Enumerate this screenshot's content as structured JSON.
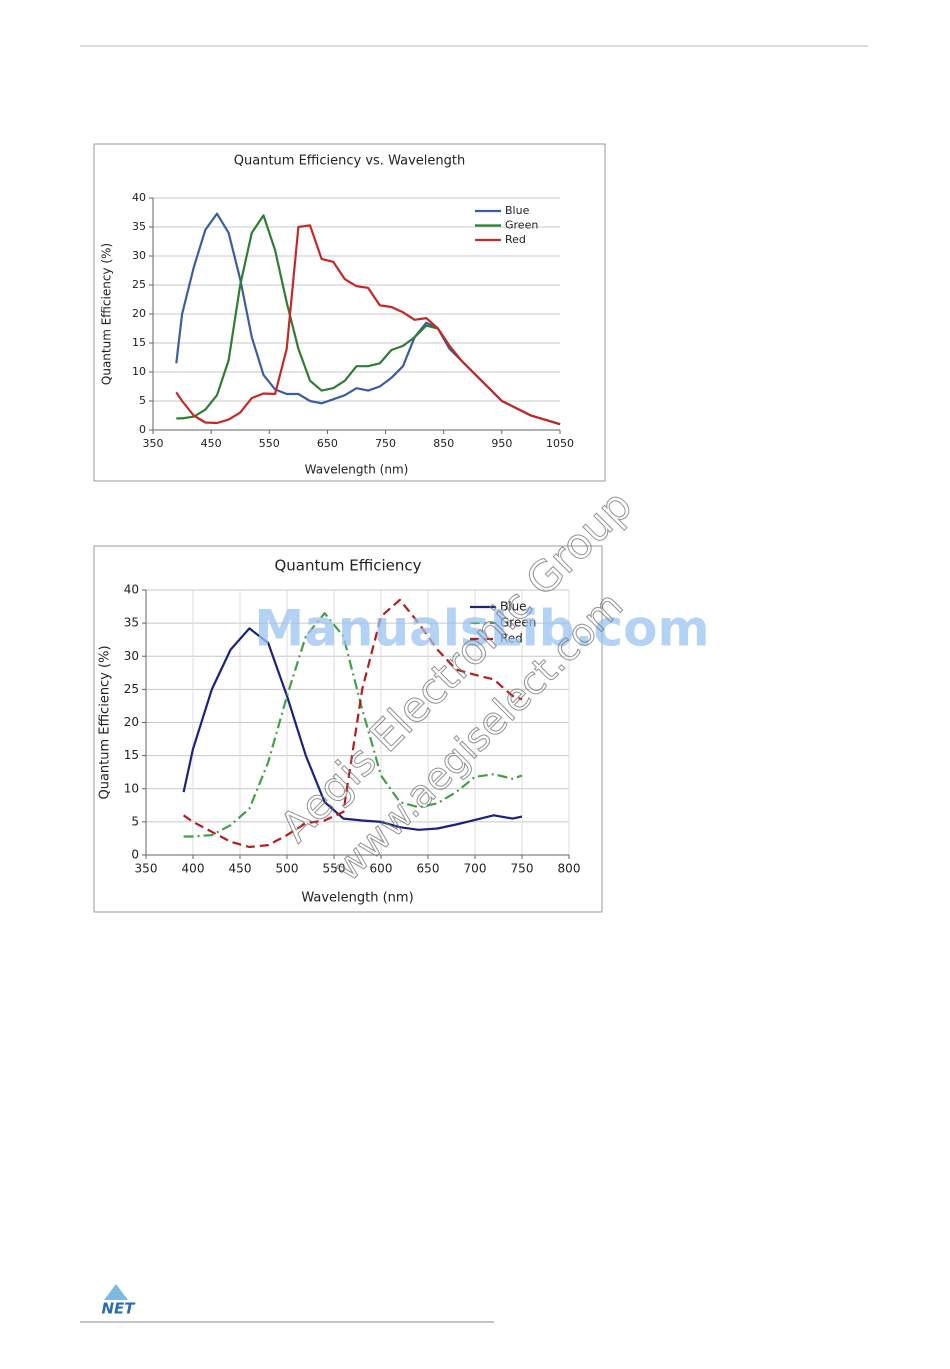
{
  "chart_data": [
    {
      "type": "line",
      "title": "Quantum Efficiency vs. Wavelength",
      "x_label": "Wavelength (nm)",
      "y_label": "Quantum Efficiency (%)",
      "x": [
        390,
        400,
        420,
        440,
        460,
        480,
        500,
        520,
        540,
        560,
        580,
        600,
        620,
        640,
        660,
        680,
        700,
        720,
        740,
        760,
        780,
        800,
        820,
        840,
        860,
        880,
        900,
        950,
        1000,
        1050
      ],
      "series": [
        {
          "name": "Blue",
          "color": "#3a5fa0",
          "line_style": "solid",
          "values": [
            11.5,
            20,
            28,
            34.5,
            37.3,
            34,
            26,
            16,
            9.5,
            7,
            6.2,
            6.2,
            5,
            4.6,
            5.3,
            6,
            7.2,
            6.8,
            7.5,
            9,
            11,
            16,
            18.5,
            17.5,
            14,
            12,
            10,
            5,
            2.5,
            1
          ]
        },
        {
          "name": "Green",
          "color": "#2e7d32",
          "line_style": "solid",
          "values": [
            2,
            2,
            2.3,
            3.5,
            6,
            12,
            25,
            34,
            37,
            31,
            22,
            14,
            8.5,
            6.8,
            7.2,
            8.5,
            11,
            11,
            11.5,
            13.8,
            14.5,
            16,
            18,
            17.5,
            14.5,
            12,
            10,
            5,
            2.5,
            1
          ]
        },
        {
          "name": "Red",
          "color": "#c62828",
          "line_style": "solid",
          "values": [
            6.5,
            5,
            2.5,
            1.3,
            1.2,
            1.8,
            3,
            5.5,
            6.3,
            6.2,
            14,
            35,
            35.3,
            29.5,
            29,
            26,
            24.8,
            24.5,
            21.5,
            21.2,
            20.3,
            19,
            19.3,
            17.5,
            14.5,
            12,
            10,
            5,
            2.5,
            1
          ]
        }
      ],
      "xlim": [
        350,
        1050
      ],
      "xticks": [
        350,
        450,
        550,
        650,
        750,
        850,
        950,
        1050
      ],
      "ylim": [
        0,
        40
      ],
      "yticks": [
        0,
        5,
        10,
        15,
        20,
        25,
        30,
        35,
        40
      ],
      "grid": "y",
      "legend": "upper right"
    },
    {
      "type": "line",
      "title": "Quantum Efficiency",
      "x_label": "Wavelength (nm)",
      "y_label": "Quantum Efficiency (%)",
      "x": [
        390,
        400,
        420,
        440,
        460,
        480,
        500,
        520,
        540,
        560,
        580,
        600,
        620,
        640,
        660,
        680,
        700,
        720,
        740,
        750
      ],
      "series": [
        {
          "name": "Blue",
          "color": "#1a237e",
          "line_style": "solid",
          "values": [
            9.5,
            16,
            25,
            31,
            34.2,
            32,
            24,
            15,
            8,
            5.5,
            5.2,
            5,
            4.2,
            3.8,
            4,
            4.6,
            5.3,
            6,
            5.5,
            5.8
          ]
        },
        {
          "name": "Green",
          "color": "#43a047",
          "line_style": "dash-dot",
          "values": [
            2.8,
            2.8,
            3,
            4.5,
            7,
            14,
            24,
            33,
            36.5,
            33,
            22,
            12,
            8,
            7.2,
            7.8,
            9.5,
            11.8,
            12.2,
            11.5,
            12
          ]
        },
        {
          "name": "Red",
          "color": "#b71c1c",
          "line_style": "dashed",
          "values": [
            6,
            5,
            3.5,
            2,
            1.2,
            1.5,
            3,
            4.8,
            5.2,
            6.5,
            25,
            36,
            38.5,
            35,
            31,
            28,
            27.2,
            26.5,
            24,
            23.5
          ]
        }
      ],
      "xlim": [
        350,
        800
      ],
      "xticks": [
        350,
        400,
        450,
        500,
        550,
        600,
        650,
        700,
        750,
        800
      ],
      "ylim": [
        0,
        40
      ],
      "yticks": [
        0,
        5,
        10,
        15,
        20,
        25,
        30,
        35,
        40
      ],
      "grid": "both",
      "legend": "upper right"
    }
  ],
  "watermarks": [
    "ManualsLib.com",
    "Aegis Electronic Group",
    "www.aegiselect.com"
  ],
  "footer": {
    "logo": "NET"
  }
}
